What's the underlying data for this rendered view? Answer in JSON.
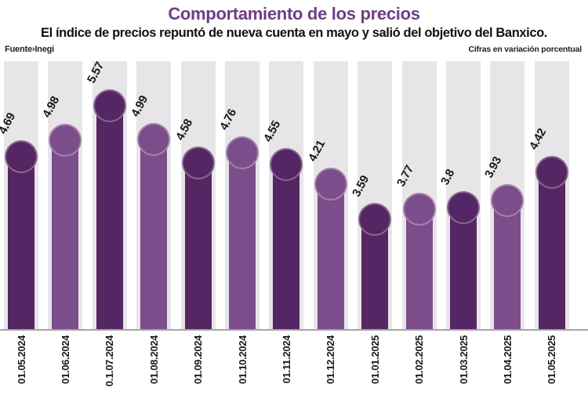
{
  "header": {
    "title": "Comportamiento de los precios",
    "subtitle": "El índice de precios repuntó de nueva cuenta en mayo y salió del objetivo del Banxico.",
    "source": "Fuente›Inegi",
    "units_note": "Cifras en variación porcentual"
  },
  "colors": {
    "title": "#6f3d85",
    "bar_dark": "#542663",
    "bar_light": "#7b4d8a",
    "track": "#e7e5e7",
    "axis": "#a5a3a6",
    "label": "#1a1a1a"
  },
  "chart_data": {
    "type": "bar",
    "title": "Comportamiento de los precios",
    "subtitle": "El índice de precios repuntó de nueva cuenta en mayo y salió del objetivo del Banxico.",
    "units": "Cifras en variación porcentual",
    "source": "Fuente›Inegi",
    "categories": [
      "01.05.2024",
      "01.06.2024",
      "0.1.07.2024",
      "01.08.2024",
      "01.09.2024",
      "01.10.2024",
      "01.11.2024",
      "01.12.2024",
      "01.01.2025",
      "01.02.2025",
      "01.03.2025",
      "01.04.2025",
      "01.05.2025"
    ],
    "values": [
      4.69,
      4.98,
      5.57,
      4.99,
      4.58,
      4.76,
      4.55,
      4.21,
      3.59,
      3.77,
      3.8,
      3.93,
      4.42
    ],
    "value_labels": [
      "4.69",
      "4.98",
      "5.57",
      "4.99",
      "4.58",
      "4.76",
      "4.55",
      "4.21",
      "3.59",
      "3.77",
      "3.8",
      "3.93",
      "4.42"
    ],
    "xlabel": "",
    "ylabel": "",
    "ylim": [
      0,
      6
    ],
    "grid": false,
    "legend": false,
    "bar_color_pattern": "alternating: odd bars dark purple, even bars light purple",
    "bar_style": "rounded lollipop cap circle atop each column, light gray full-height background track behind each bar, value labels rotated diagonally above caps, date labels rotated vertically below axis"
  }
}
